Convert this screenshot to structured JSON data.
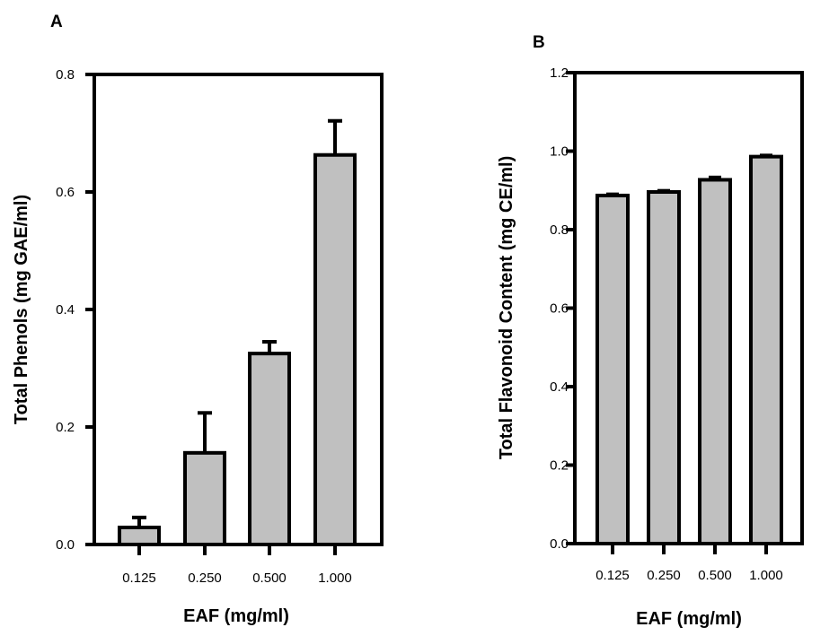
{
  "chart_data": [
    {
      "panel": "A",
      "type": "bar",
      "title": "",
      "xlabel": "EAF (mg/ml)",
      "ylabel": "Total Phenols (mg GAE/ml)",
      "categories": [
        "0.125",
        "0.250",
        "0.500",
        "1.000"
      ],
      "values": [
        0.029,
        0.156,
        0.325,
        0.663
      ],
      "errors": [
        0.017,
        0.068,
        0.02,
        0.058
      ],
      "ylim": [
        0,
        0.8
      ],
      "yticks": [
        "0.0",
        "0.2",
        "0.4",
        "0.6",
        "0.8"
      ],
      "grid": false,
      "bar_color": "#c0c0c0",
      "edge_color": "#000000"
    },
    {
      "panel": "B",
      "type": "bar",
      "title": "",
      "xlabel": "EAF (mg/ml)",
      "ylabel": "Total Flavonoid Content (mg CE/ml)",
      "categories": [
        "0.125",
        "0.250",
        "0.500",
        "1.000"
      ],
      "values": [
        0.887,
        0.896,
        0.927,
        0.986
      ],
      "errors": [
        0.003,
        0.003,
        0.006,
        0.003
      ],
      "ylim": [
        0,
        1.2
      ],
      "yticks": [
        "0.0",
        "0.2",
        "0.4",
        "0.6",
        "0.8",
        "1.0",
        "1.2"
      ],
      "grid": false,
      "bar_color": "#c0c0c0",
      "edge_color": "#000000"
    }
  ]
}
